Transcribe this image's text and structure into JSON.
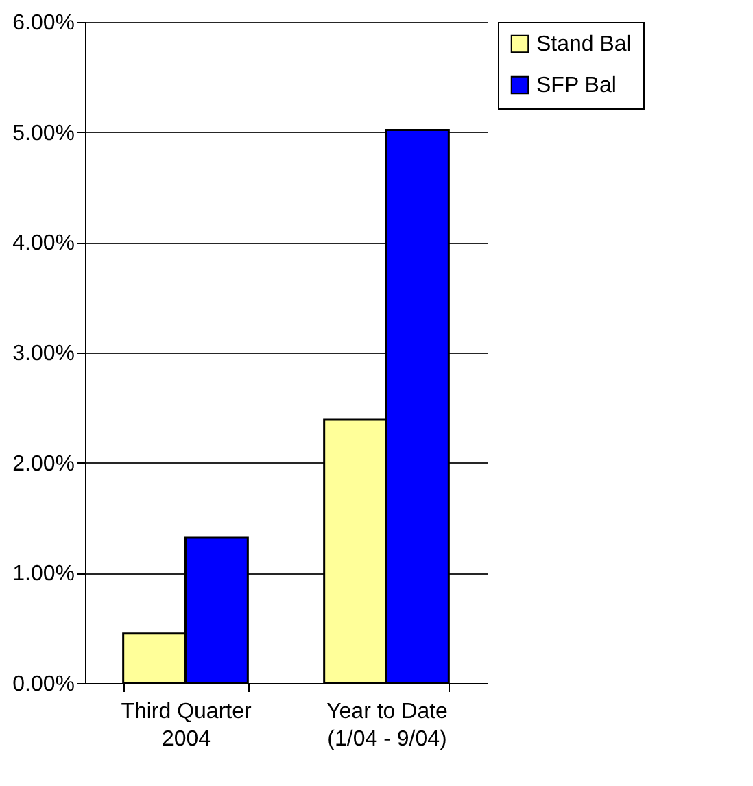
{
  "chart_data": {
    "type": "bar",
    "categories": [
      "Third Quarter 2004",
      "Year to Date (1/04 - 9/04)"
    ],
    "series": [
      {
        "name": "Stand Bal",
        "color": "#ffff99",
        "values": [
          0.45,
          2.39
        ]
      },
      {
        "name": "SFP Bal",
        "color": "#0000ff",
        "values": [
          1.32,
          5.02
        ]
      }
    ],
    "ylim": [
      0,
      6
    ],
    "yticks": [
      {
        "value": 0,
        "label": "0.00%"
      },
      {
        "value": 1,
        "label": "1.00%"
      },
      {
        "value": 2,
        "label": "2.00%"
      },
      {
        "value": 3,
        "label": "3.00%"
      },
      {
        "value": 4,
        "label": "4.00%"
      },
      {
        "value": 5,
        "label": "5.00%"
      },
      {
        "value": 6,
        "label": "6.00%"
      }
    ],
    "grid": "y",
    "legend": "right"
  }
}
